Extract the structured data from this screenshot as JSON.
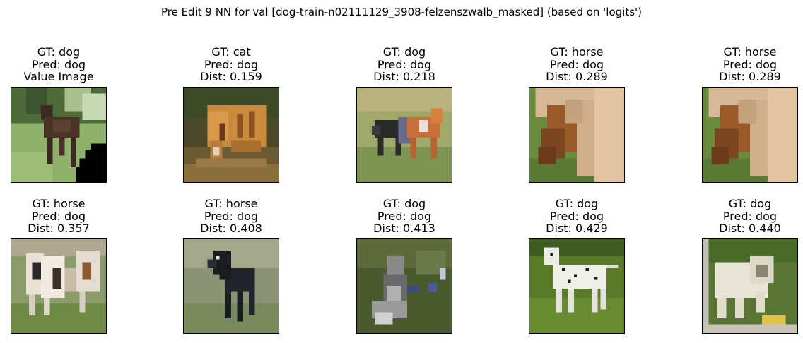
{
  "figure": {
    "title": "Pre Edit 9 NN for val [dog-train-n02111129_3908-felzenszwalb_masked] (based on 'logits')"
  },
  "panels": [
    {
      "gt": "GT: dog",
      "pred": "Pred: dog",
      "extra": "Value Image",
      "scene": "dog-on-grass-masked"
    },
    {
      "gt": "GT: cat",
      "pred": "Pred: dog",
      "extra": "Dist: 0.159",
      "scene": "tiger-in-water"
    },
    {
      "gt": "GT: dog",
      "pred": "Pred: dog",
      "extra": "Dist: 0.218",
      "scene": "two-dogs-field"
    },
    {
      "gt": "GT: horse",
      "pred": "Pred: dog",
      "extra": "Dist: 0.289",
      "scene": "pony-head"
    },
    {
      "gt": "GT: horse",
      "pred": "Pred: dog",
      "extra": "Dist: 0.289",
      "scene": "pony-head"
    },
    {
      "gt": "GT: horse",
      "pred": "Pred: dog",
      "extra": "Dist: 0.357",
      "scene": "three-horses"
    },
    {
      "gt": "GT: horse",
      "pred": "Pred: dog",
      "extra": "Dist: 0.408",
      "scene": "black-foal"
    },
    {
      "gt": "GT: dog",
      "pred": "Pred: dog",
      "extra": "Dist: 0.413",
      "scene": "sitting-dog"
    },
    {
      "gt": "GT: dog",
      "pred": "Pred: dog",
      "extra": "Dist: 0.429",
      "scene": "dalmatian"
    },
    {
      "gt": "GT: dog",
      "pred": "Pred: dog",
      "extra": "Dist: 0.440",
      "scene": "bulldog"
    }
  ]
}
